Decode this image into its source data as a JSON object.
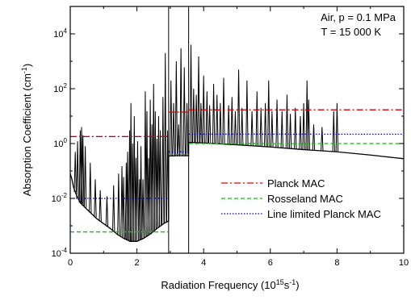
{
  "chart_data": {
    "type": "line",
    "xlabel_main": "Radiation Frequency (10",
    "xlabel_exp1": "15",
    "xlabel_mid": "s",
    "xlabel_exp2": "-1",
    "xlabel_end": ")",
    "ylabel_main": "Absorption Coefficient (cm",
    "ylabel_exp": "-1",
    "ylabel_end": ")",
    "xlim": [
      0,
      10
    ],
    "ylim": [
      0.0001,
      100000
    ],
    "yscale": "log",
    "x_ticks": [
      "0",
      "2",
      "4",
      "6",
      "8",
      "10"
    ],
    "y_ticks": [
      {
        "base": "10",
        "exp": "-4"
      },
      {
        "base": "10",
        "exp": "-2"
      },
      {
        "base": "10",
        "exp": "0"
      },
      {
        "base": "10",
        "exp": "2"
      },
      {
        "base": "10",
        "exp": "4"
      }
    ],
    "annotation_line1": "Air, p = 0.1 MPa",
    "annotation_line2": "T = 15 000 K",
    "vertical_lines_x": [
      2.95,
      3.55
    ],
    "legend": [
      {
        "label": "Planck MAC",
        "color": "#dd0000",
        "dash": "8,3,2,3"
      },
      {
        "label": "Rosseland MAC",
        "color": "#00cc00",
        "dash": "5,3"
      },
      {
        "label": "Line limited Planck MAC",
        "color": "#0000cc",
        "dash": "1.5,2"
      }
    ],
    "series": [
      {
        "name": "Planck MAC",
        "color": "#dd0000",
        "segments": [
          [
            0,
            2.95,
            1.8
          ],
          [
            2.95,
            3.55,
            14
          ],
          [
            3.55,
            10,
            17
          ]
        ]
      },
      {
        "name": "Rosseland MAC",
        "color": "#00cc00",
        "segments": [
          [
            0,
            2.95,
            0.0006
          ],
          [
            2.95,
            3.55,
            0.4
          ],
          [
            3.55,
            10,
            1.0
          ]
        ]
      },
      {
        "name": "Line limited Planck MAC",
        "color": "#0000cc",
        "segments": [
          [
            0,
            2.95,
            0.01
          ],
          [
            2.95,
            3.55,
            0.5
          ],
          [
            3.55,
            10,
            2.2
          ]
        ]
      }
    ],
    "continuum": [
      [
        0.0,
        0.08
      ],
      [
        0.05,
        0.05
      ],
      [
        0.1,
        0.025
      ],
      [
        0.2,
        0.012
      ],
      [
        0.3,
        0.007
      ],
      [
        0.5,
        0.004
      ],
      [
        0.8,
        0.0018
      ],
      [
        1.0,
        0.0012
      ],
      [
        1.2,
        0.0008
      ],
      [
        1.4,
        0.0005
      ],
      [
        1.6,
        0.00035
      ],
      [
        1.8,
        0.00027
      ],
      [
        2.0,
        0.00027
      ],
      [
        2.2,
        0.00035
      ],
      [
        2.4,
        0.0005
      ],
      [
        2.6,
        0.0008
      ],
      [
        2.8,
        0.0012
      ],
      [
        2.95,
        0.0015
      ],
      [
        2.951,
        0.35
      ],
      [
        3.2,
        0.36
      ],
      [
        3.549,
        0.36
      ],
      [
        3.55,
        1.1
      ],
      [
        4.0,
        1.05
      ],
      [
        5.0,
        0.9
      ],
      [
        6.0,
        0.75
      ],
      [
        7.0,
        0.6
      ],
      [
        8.0,
        0.5
      ],
      [
        9.0,
        0.38
      ],
      [
        10.0,
        0.28
      ]
    ],
    "lines": [
      [
        0.15,
        0.5
      ],
      [
        0.22,
        1.2
      ],
      [
        0.3,
        3
      ],
      [
        0.34,
        4
      ],
      [
        0.38,
        2
      ],
      [
        0.45,
        0.8
      ],
      [
        0.6,
        0.2
      ],
      [
        0.75,
        0.05
      ],
      [
        0.9,
        0.02
      ],
      [
        1.1,
        0.012
      ],
      [
        1.3,
        0.03
      ],
      [
        1.45,
        0.08
      ],
      [
        1.55,
        0.15
      ],
      [
        1.6,
        0.06
      ],
      [
        1.68,
        0.2
      ],
      [
        1.72,
        0.5
      ],
      [
        1.78,
        3
      ],
      [
        1.82,
        30
      ],
      [
        1.87,
        1
      ],
      [
        1.92,
        10
      ],
      [
        1.97,
        0.3
      ],
      [
        2.02,
        1.2
      ],
      [
        2.08,
        0.05
      ],
      [
        2.12,
        0.8
      ],
      [
        2.18,
        0.05
      ],
      [
        2.25,
        80
      ],
      [
        2.3,
        15
      ],
      [
        2.35,
        0.3
      ],
      [
        2.4,
        40
      ],
      [
        2.45,
        5
      ],
      [
        2.5,
        150
      ],
      [
        2.55,
        15
      ],
      [
        2.6,
        1.5
      ],
      [
        2.65,
        10
      ],
      [
        2.7,
        3
      ],
      [
        2.78,
        50
      ],
      [
        2.85,
        2000
      ],
      [
        2.92,
        3
      ],
      [
        3.02,
        200
      ],
      [
        3.1,
        30
      ],
      [
        3.18,
        1000
      ],
      [
        3.25,
        5
      ],
      [
        3.32,
        3000
      ],
      [
        3.42,
        600
      ],
      [
        3.5,
        30
      ],
      [
        3.62,
        4000
      ],
      [
        3.7,
        100
      ],
      [
        3.78,
        60
      ],
      [
        3.85,
        1500
      ],
      [
        3.92,
        30
      ],
      [
        4.0,
        300
      ],
      [
        4.1,
        80
      ],
      [
        4.18,
        25
      ],
      [
        4.3,
        150
      ],
      [
        4.4,
        60
      ],
      [
        4.5,
        30
      ],
      [
        4.6,
        250
      ],
      [
        4.75,
        25
      ],
      [
        4.85,
        50
      ],
      [
        4.95,
        15
      ],
      [
        5.05,
        500
      ],
      [
        5.15,
        20
      ],
      [
        5.3,
        200
      ],
      [
        5.45,
        15
      ],
      [
        5.6,
        80
      ],
      [
        5.72,
        20
      ],
      [
        5.85,
        30
      ],
      [
        5.95,
        200
      ],
      [
        6.05,
        15
      ],
      [
        6.2,
        40
      ],
      [
        6.35,
        15
      ],
      [
        6.5,
        60
      ],
      [
        6.6,
        12
      ],
      [
        6.75,
        20
      ],
      [
        6.9,
        10
      ],
      [
        7.0,
        30
      ],
      [
        7.1,
        200
      ],
      [
        7.15,
        40
      ],
      [
        7.3,
        5
      ],
      [
        7.55,
        4
      ],
      [
        7.9,
        15
      ],
      [
        8.0,
        30
      ]
    ]
  }
}
